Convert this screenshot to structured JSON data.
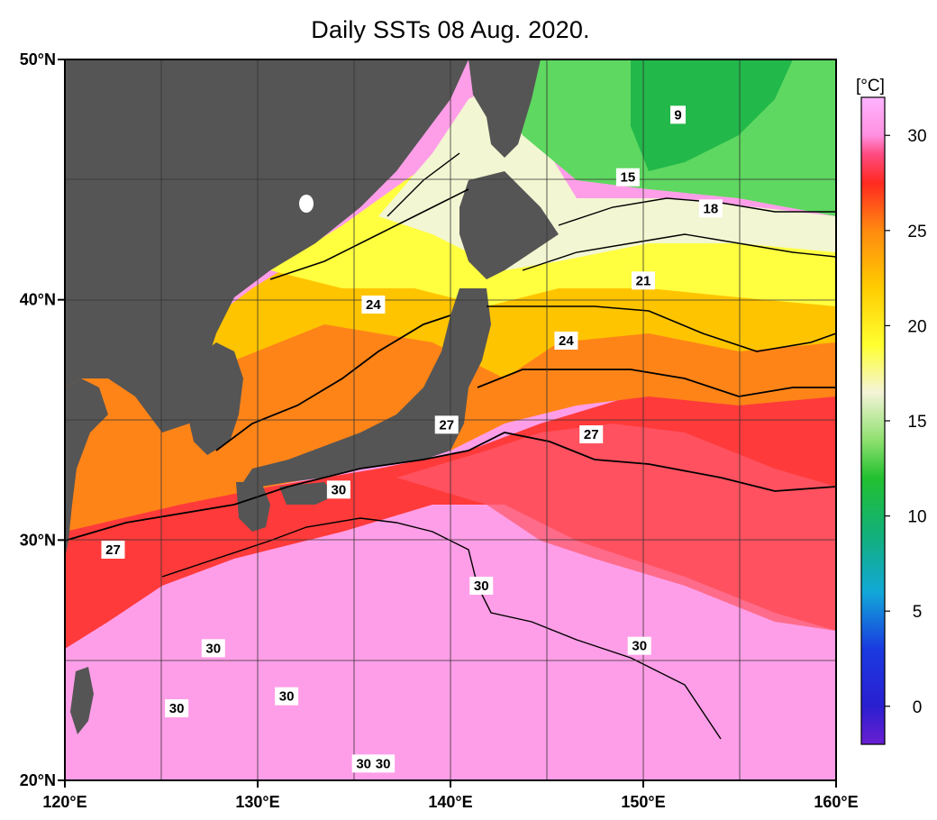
{
  "title": "Daily SSTs 08 Aug. 2020.",
  "map": {
    "lon_range": [
      120,
      160
    ],
    "lat_range": [
      20,
      50
    ],
    "lon_tick_labels": [
      "120°E",
      "130°E",
      "140°E",
      "150°E",
      "160°E"
    ],
    "lat_tick_labels": [
      "20°N",
      "30°N",
      "40°N",
      "50°N"
    ],
    "gridlines": true,
    "land_color": "#555555"
  },
  "colorbar": {
    "unit": "[°C]",
    "range": [
      -2,
      32
    ],
    "ticks": [
      "30",
      "25",
      "20",
      "15",
      "10",
      "5",
      "0"
    ],
    "stops": [
      {
        "v": -2,
        "c": "#6a1fd0"
      },
      {
        "v": 0,
        "c": "#2a1fd0"
      },
      {
        "v": 3,
        "c": "#1a3ae0"
      },
      {
        "v": 6,
        "c": "#12a8d8"
      },
      {
        "v": 9,
        "c": "#12b07a"
      },
      {
        "v": 12,
        "c": "#22c030"
      },
      {
        "v": 14,
        "c": "#8fe070"
      },
      {
        "v": 16.5,
        "c": "#f4f4d8"
      },
      {
        "v": 19,
        "c": "#ffff30"
      },
      {
        "v": 22,
        "c": "#ffcc00"
      },
      {
        "v": 25,
        "c": "#ff8a10"
      },
      {
        "v": 27.5,
        "c": "#ff2a20"
      },
      {
        "v": 29,
        "c": "#ff4a80"
      },
      {
        "v": 30,
        "c": "#ff90e0"
      },
      {
        "v": 32,
        "c": "#ffb4ff"
      }
    ]
  },
  "contour_labels": [
    {
      "text": "9",
      "lon": 151.8,
      "lat": 47.7
    },
    {
      "text": "15",
      "lon": 149.2,
      "lat": 45.1
    },
    {
      "text": "18",
      "lon": 153.5,
      "lat": 43.8
    },
    {
      "text": "21",
      "lon": 150.0,
      "lat": 40.8
    },
    {
      "text": "24",
      "lon": 136.0,
      "lat": 39.8
    },
    {
      "text": "24",
      "lon": 146.0,
      "lat": 38.3
    },
    {
      "text": "27",
      "lon": 139.8,
      "lat": 34.8
    },
    {
      "text": "27",
      "lon": 147.3,
      "lat": 34.4
    },
    {
      "text": "27",
      "lon": 122.5,
      "lat": 29.6
    },
    {
      "text": "30",
      "lon": 134.2,
      "lat": 32.1
    },
    {
      "text": "30",
      "lon": 141.6,
      "lat": 28.1
    },
    {
      "text": "30",
      "lon": 149.8,
      "lat": 25.6
    },
    {
      "text": "30",
      "lon": 127.7,
      "lat": 25.5
    },
    {
      "text": "30",
      "lon": 125.8,
      "lat": 23.0
    },
    {
      "text": "30",
      "lon": 131.5,
      "lat": 23.5
    },
    {
      "text": "30",
      "lon": 135.5,
      "lat": 20.7
    },
    {
      "text": "30",
      "lon": 136.5,
      "lat": 20.7
    }
  ]
}
